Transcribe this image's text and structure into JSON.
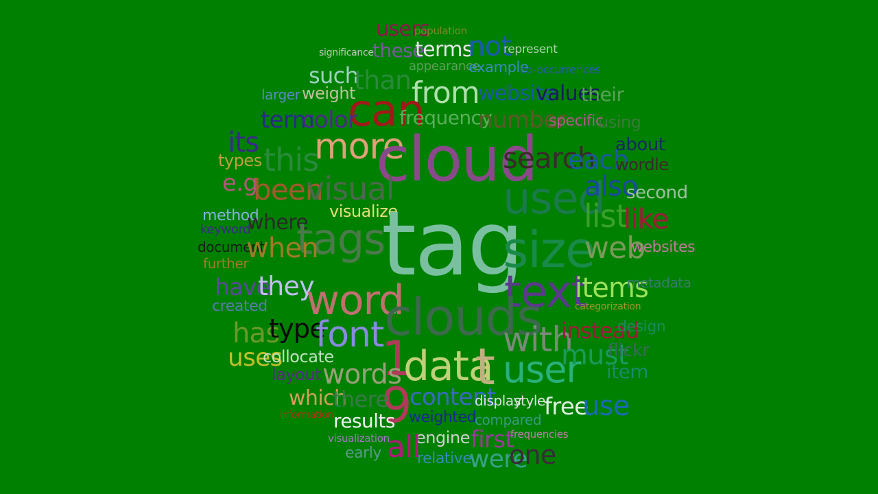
{
  "background": "#008000",
  "words": [
    {
      "text": "users",
      "color": "#8b1a4a"
    },
    {
      "text": "population",
      "color": "#7a8a2a"
    },
    {
      "text": "significance",
      "color": "#c0c8c0"
    },
    {
      "text": "these",
      "color": "#7a5aa0"
    },
    {
      "text": "terms",
      "color": "#e6e6e6"
    },
    {
      "text": "not",
      "color": "#1a5ab0"
    },
    {
      "text": "represent",
      "color": "#b0d0b0"
    },
    {
      "text": "appearance",
      "color": "#5aa05a"
    },
    {
      "text": "example",
      "color": "#3a8ac0"
    },
    {
      "text": "co-occurrences",
      "color": "#2a5ab0"
    },
    {
      "text": "such",
      "color": "#a0d0c0"
    },
    {
      "text": "than",
      "color": "#2a8a3a"
    },
    {
      "text": "from",
      "color": "#b0e0b0"
    },
    {
      "text": "larger",
      "color": "#5a8ac0"
    },
    {
      "text": "weight",
      "color": "#c0c0a0"
    },
    {
      "text": "can",
      "color": "#a01a1a"
    },
    {
      "text": "website",
      "color": "#1a5aa0"
    },
    {
      "text": "values",
      "color": "#1a1a60"
    },
    {
      "text": "their",
      "color": "#5aa05a"
    },
    {
      "text": "term",
      "color": "#2a2a8a"
    },
    {
      "text": "color",
      "color": "#4a2a8a"
    },
    {
      "text": "frequency",
      "color": "#5ab05a"
    },
    {
      "text": "number",
      "color": "#5a5a2a"
    },
    {
      "text": "specific",
      "color": "#b05a8a"
    },
    {
      "text": "using",
      "color": "#3a7a3a"
    },
    {
      "text": "its",
      "color": "#3a2a8a"
    },
    {
      "text": "more",
      "color": "#e0a07a"
    },
    {
      "text": "cloud",
      "color": "#8a4a8a"
    },
    {
      "text": "search",
      "color": "#3a2a2a"
    },
    {
      "text": "each",
      "color": "#1a5aa0"
    },
    {
      "text": "about",
      "color": "#1a2a60"
    },
    {
      "text": "types",
      "color": "#c0a040"
    },
    {
      "text": "this",
      "color": "#2a8a3a"
    },
    {
      "text": "wordle",
      "color": "#3a2a2a"
    },
    {
      "text": "e.g",
      "color": "#b05a7a"
    },
    {
      "text": "been",
      "color": "#a05a30"
    },
    {
      "text": "visual",
      "color": "#4a6a4a"
    },
    {
      "text": "used",
      "color": "#1a7a4a"
    },
    {
      "text": "also",
      "color": "#1a4aa0"
    },
    {
      "text": "second",
      "color": "#a0c0a0"
    },
    {
      "text": "list",
      "color": "#3aa02a"
    },
    {
      "text": "like",
      "color": "#a01a3a"
    },
    {
      "text": "method",
      "color": "#8ab0e0"
    },
    {
      "text": "visualize",
      "color": "#e0e07a"
    },
    {
      "text": "keyword",
      "color": "#3a2a8a"
    },
    {
      "text": "where",
      "color": "#2a2a2a"
    },
    {
      "text": "tag",
      "color": "#7ac0a0"
    },
    {
      "text": "tags",
      "color": "#4a7a4a"
    },
    {
      "text": "size",
      "color": "#1a8a4a"
    },
    {
      "text": "document",
      "color": "#1a1a1a"
    },
    {
      "text": "when",
      "color": "#a07a2a"
    },
    {
      "text": "web",
      "color": "#7a9a5a"
    },
    {
      "text": "websites",
      "color": "#c07a9a"
    },
    {
      "text": "further",
      "color": "#a07a2a"
    },
    {
      "text": "have",
      "color": "#5a4a9a"
    },
    {
      "text": "they",
      "color": "#c0c0f0"
    },
    {
      "text": "word",
      "color": "#c07070"
    },
    {
      "text": "text",
      "color": "#5a3a8a"
    },
    {
      "text": "items",
      "color": "#9ae05a"
    },
    {
      "text": "metadata",
      "color": "#3a7a6a"
    },
    {
      "text": "created",
      "color": "#5a7ab0"
    },
    {
      "text": "clouds",
      "color": "#3a6a4a"
    },
    {
      "text": "categorization",
      "color": "#9a9a2a"
    },
    {
      "text": "has",
      "color": "#6a9a2a"
    },
    {
      "text": "type",
      "color": "#0a0a0a"
    },
    {
      "text": "font",
      "color": "#8a8ae0"
    },
    {
      "text": "with",
      "color": "#7a8a7a"
    },
    {
      "text": "instead",
      "color": "#a01a3a"
    },
    {
      "text": "design",
      "color": "#1a8a5a"
    },
    {
      "text": "uses",
      "color": "#c0c02a"
    },
    {
      "text": "collocate",
      "color": "#c0e0c0"
    },
    {
      "text": "1",
      "color": "#b03a5a"
    },
    {
      "text": "data",
      "color": "#c0d07a"
    },
    {
      "text": "t",
      "color": "#c0b080"
    },
    {
      "text": "user",
      "color": "#2ab07a"
    },
    {
      "text": "must",
      "color": "#1a9a5a"
    },
    {
      "text": "flickr",
      "color": "#3a6a5a"
    },
    {
      "text": "item",
      "color": "#1a8a6a"
    },
    {
      "text": "layout",
      "color": "#5a2a8a"
    },
    {
      "text": "words",
      "color": "#9aa07a"
    },
    {
      "text": "9",
      "color": "#b03a5a"
    },
    {
      "text": "content",
      "color": "#3a6ac0"
    },
    {
      "text": "which",
      "color": "#d0a05a"
    },
    {
      "text": "there",
      "color": "#3a7a4a"
    },
    {
      "text": "display",
      "color": "#e0e0e0"
    },
    {
      "text": "style",
      "color": "#e0e0e0"
    },
    {
      "text": "free",
      "color": "#e0f0e0"
    },
    {
      "text": "use",
      "color": "#1a6ab0"
    },
    {
      "text": "information",
      "color": "#a03a1a"
    },
    {
      "text": "results",
      "color": "#f0f0f0"
    },
    {
      "text": "weighted",
      "color": "#1a2a8a"
    },
    {
      "text": "compared",
      "color": "#3a9a7a"
    },
    {
      "text": "engine",
      "color": "#d0d0d0"
    },
    {
      "text": "first",
      "color": "#9a3a9a"
    },
    {
      "text": "frequencies",
      "color": "#c07ab0"
    },
    {
      "text": "visualization",
      "color": "#a07ac0"
    },
    {
      "text": "all",
      "color": "#b01a7a"
    },
    {
      "text": "early",
      "color": "#5a9a8a"
    },
    {
      "text": "relative",
      "color": "#3a8ab0"
    },
    {
      "text": "were",
      "color": "#3aa08a"
    },
    {
      "text": "one",
      "color": "#3a2a3a"
    }
  ]
}
